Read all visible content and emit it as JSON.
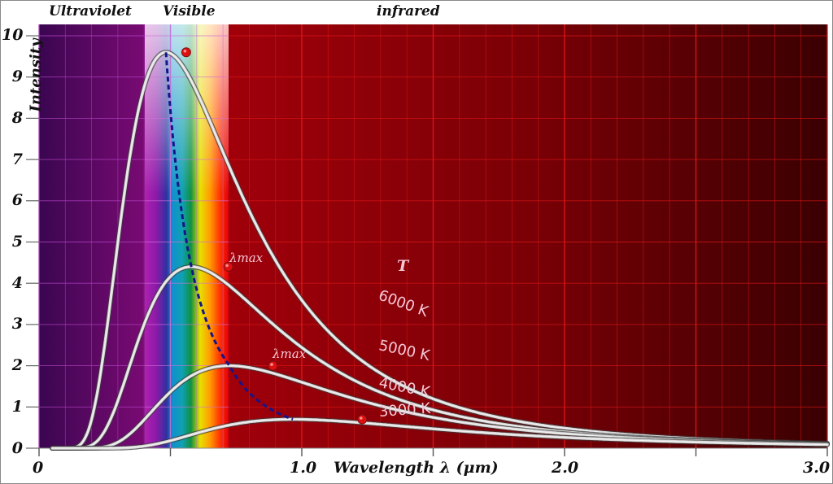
{
  "regions": {
    "ultraviolet": "Ultraviolet",
    "visible": "Visible",
    "infrared": "infrared"
  },
  "axes": {
    "ylabel": "Intensity",
    "xlabel": "Wavelength λ (μm)",
    "yticks": [
      "0",
      "1",
      "2",
      "3",
      "4",
      "5",
      "6",
      "7",
      "8",
      "9",
      "10"
    ],
    "xticks": [
      "0",
      "1.0",
      "2.0",
      "3.0"
    ]
  },
  "annotations": {
    "temperature_header": "T",
    "lambda_max_1": "λmax",
    "lambda_max_2": "λmax"
  },
  "curve_labels": {
    "t6000": "6000 K",
    "t5000": "5000 K",
    "t4000": "4000 K",
    "t3000": "3000 K"
  },
  "colors": {
    "ultraviolet_bg": "#5a0a5e",
    "infrared_bg": "#9a0008",
    "curve": "#d8d8d8",
    "wien_line": "#1a1a8c",
    "peak_marker": "#e01010",
    "label_pink": "#f6c8d6"
  },
  "chart_data": {
    "type": "line",
    "title": "",
    "xlabel": "Wavelength λ (μm)",
    "ylabel": "Intensity",
    "xlim": [
      0,
      3.0
    ],
    "ylim": [
      0,
      10
    ],
    "grid": true,
    "x_ticks": [
      0,
      1.0,
      2.0,
      3.0
    ],
    "y_ticks": [
      0,
      1,
      2,
      3,
      4,
      5,
      6,
      7,
      8,
      9,
      10
    ],
    "regions": [
      {
        "name": "Ultraviolet",
        "x_range": [
          0,
          0.4
        ]
      },
      {
        "name": "Visible",
        "x_range": [
          0.4,
          0.72
        ]
      },
      {
        "name": "infrared",
        "x_range": [
          0.72,
          3.0
        ]
      }
    ],
    "series": [
      {
        "name": "6000 K",
        "peak_x": 0.56,
        "peak_y": 9.6,
        "x": [
          0.1,
          0.2,
          0.3,
          0.4,
          0.5,
          0.56,
          0.7,
          1.0,
          1.5,
          2.0,
          2.5,
          3.0
        ],
        "values": [
          0.0,
          0.9,
          4.3,
          7.6,
          9.3,
          9.6,
          8.5,
          4.9,
          2.1,
          1.0,
          0.6,
          0.3
        ]
      },
      {
        "name": "5000 K",
        "peak_x": 0.72,
        "peak_y": 4.4,
        "x": [
          0.15,
          0.3,
          0.4,
          0.5,
          0.6,
          0.72,
          1.0,
          1.5,
          2.0,
          2.5,
          3.0
        ],
        "values": [
          0.0,
          1.1,
          2.4,
          3.4,
          4.1,
          4.4,
          3.7,
          2.0,
          1.1,
          0.65,
          0.55
        ]
      },
      {
        "name": "4000 K",
        "peak_x": 0.89,
        "peak_y": 2.0,
        "x": [
          0.2,
          0.4,
          0.6,
          0.8,
          0.89,
          1.0,
          1.5,
          2.0,
          2.5,
          3.0
        ],
        "values": [
          0.0,
          0.5,
          1.4,
          1.95,
          2.0,
          1.95,
          1.3,
          0.8,
          0.45,
          0.35
        ]
      },
      {
        "name": "3000 K",
        "peak_x": 1.23,
        "peak_y": 0.7,
        "x": [
          0.5,
          0.7,
          1.0,
          1.23,
          1.5,
          2.0,
          2.5,
          3.0
        ],
        "values": [
          0.0,
          0.15,
          0.5,
          0.7,
          0.65,
          0.4,
          0.25,
          0.2
        ]
      }
    ],
    "annotations": [
      {
        "text": "λmax",
        "x": 0.72,
        "y": 4.4
      },
      {
        "text": "λmax",
        "x": 0.89,
        "y": 2.0
      },
      {
        "text": "T",
        "x": 1.39,
        "y": 4.5
      },
      {
        "text": "Wien displacement (dashed)",
        "points": [
          [
            0.56,
            9.6
          ],
          [
            0.72,
            4.4
          ],
          [
            0.89,
            2.0
          ],
          [
            1.23,
            0.7
          ]
        ]
      }
    ]
  }
}
